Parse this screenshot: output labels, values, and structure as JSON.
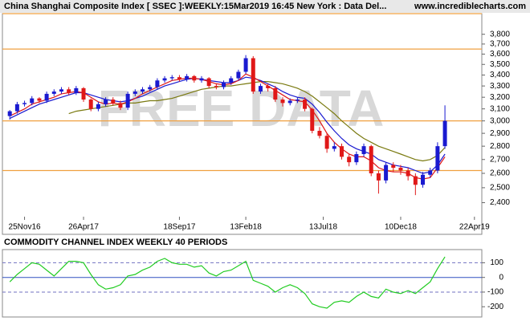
{
  "chart_data": [
    {
      "type": "candlestick",
      "title": "China Shanghai Composite Index [ SSEC ]:WEEKLY:15Mar2019 16:45 New York : Data Del...",
      "source": "www.incrediblecharts.com",
      "watermark": "FREE DATA",
      "log": true,
      "ylim": [
        2310,
        4020
      ],
      "yticks": [
        {
          "value": 2400,
          "label": "2,400"
        },
        {
          "value": 2500,
          "label": "2,500"
        },
        {
          "value": 2600,
          "label": "2,600"
        },
        {
          "value": 2700,
          "label": "2,700"
        },
        {
          "value": 2800,
          "label": "2,800"
        },
        {
          "value": 2900,
          "label": "2,900"
        },
        {
          "value": 3000,
          "label": "3,000"
        },
        {
          "value": 3100,
          "label": "3,100"
        },
        {
          "value": 3200,
          "label": "3,200"
        },
        {
          "value": 3300,
          "label": "3,300"
        },
        {
          "value": 3400,
          "label": "3,400"
        },
        {
          "value": 3500,
          "label": "3,500"
        },
        {
          "value": 3600,
          "label": "3,600"
        },
        {
          "value": 3700,
          "label": "3,700"
        },
        {
          "value": 3800,
          "label": "3,800"
        }
      ],
      "xlim": [
        -1,
        64
      ],
      "xticks": [
        {
          "value": 2,
          "label": "25Nov16"
        },
        {
          "value": 10,
          "label": "26Apr17"
        },
        {
          "value": 23,
          "label": "18Sep17"
        },
        {
          "value": 32,
          "label": "13Feb18"
        },
        {
          "value": 42.5,
          "label": "13Jul18"
        },
        {
          "value": 53,
          "label": "10Dec18"
        },
        {
          "value": 63,
          "label": "22Apr19"
        }
      ],
      "up_color": "#1a1ad0",
      "down_color": "#e01818",
      "hlines": [
        3650,
        3000,
        2620
      ],
      "hline_color": "#f0a040",
      "open": [
        3040,
        3080,
        3140,
        3150,
        3190,
        3170,
        3230,
        3250,
        3270,
        3240,
        3280,
        3180,
        3100,
        3140,
        3180,
        3150,
        3110,
        3230,
        3250,
        3270,
        3290,
        3350,
        3370,
        3380,
        3360,
        3390,
        3350,
        3370,
        3300,
        3290,
        3330,
        3370,
        3430,
        3560,
        3250,
        3300,
        3280,
        3180,
        3150,
        3170,
        3180,
        3100,
        2920,
        2880,
        2780,
        2800,
        2720,
        2680,
        2740,
        2800,
        2600,
        2550,
        2660,
        2640,
        2620,
        2580,
        2520,
        2590,
        2620,
        2800
      ],
      "high": [
        3090,
        3160,
        3170,
        3210,
        3200,
        3250,
        3270,
        3290,
        3290,
        3300,
        3290,
        3190,
        3160,
        3200,
        3200,
        3170,
        3250,
        3270,
        3290,
        3310,
        3370,
        3390,
        3400,
        3400,
        3410,
        3400,
        3390,
        3380,
        3320,
        3350,
        3390,
        3450,
        3590,
        3580,
        3320,
        3320,
        3300,
        3200,
        3190,
        3200,
        3200,
        3110,
        2950,
        2900,
        2830,
        2820,
        2740,
        2760,
        2820,
        2810,
        2620,
        2680,
        2680,
        2660,
        2640,
        2600,
        2610,
        2640,
        2830,
        3130
      ],
      "low": [
        3010,
        3060,
        3120,
        3130,
        3150,
        3150,
        3210,
        3230,
        3220,
        3220,
        3160,
        3080,
        3080,
        3120,
        3130,
        3090,
        3090,
        3210,
        3230,
        3250,
        3270,
        3330,
        3350,
        3340,
        3340,
        3330,
        3330,
        3280,
        3270,
        3270,
        3310,
        3350,
        3410,
        3230,
        3230,
        3250,
        3160,
        3120,
        3130,
        3150,
        3080,
        2900,
        2860,
        2750,
        2760,
        2700,
        2650,
        2660,
        2720,
        2580,
        2460,
        2530,
        2610,
        2590,
        2550,
        2450,
        2500,
        2570,
        2600,
        2780
      ],
      "close": [
        3080,
        3140,
        3150,
        3190,
        3170,
        3230,
        3250,
        3270,
        3240,
        3280,
        3180,
        3100,
        3140,
        3180,
        3150,
        3110,
        3230,
        3250,
        3270,
        3290,
        3350,
        3370,
        3380,
        3360,
        3390,
        3350,
        3370,
        3300,
        3290,
        3330,
        3370,
        3430,
        3560,
        3250,
        3300,
        3280,
        3180,
        3150,
        3170,
        3180,
        3100,
        2920,
        2880,
        2780,
        2800,
        2720,
        2680,
        2740,
        2800,
        2600,
        2550,
        2660,
        2640,
        2620,
        2580,
        2520,
        2590,
        2620,
        2800,
        3000
      ],
      "series": [
        {
          "color": "#7a7a10",
          "values": [
            null,
            null,
            null,
            null,
            null,
            null,
            null,
            null,
            3060,
            3080,
            3090,
            3100,
            3110,
            3120,
            3130,
            3140,
            3150,
            3150,
            3160,
            3170,
            3170,
            3180,
            3190,
            3210,
            3230,
            3250,
            3270,
            3280,
            3290,
            3300,
            3300,
            3310,
            3320,
            3330,
            3340,
            3340,
            3330,
            3320,
            3300,
            3280,
            3250,
            3210,
            3160,
            3110,
            3060,
            3000,
            2950,
            2900,
            2860,
            2830,
            2800,
            2780,
            2760,
            2740,
            2720,
            2700,
            2690,
            2700,
            2730,
            2790
          ]
        },
        {
          "color": "#1a1ad0",
          "values": [
            3020,
            3050,
            3080,
            3110,
            3140,
            3160,
            3180,
            3200,
            3220,
            3240,
            3240,
            3220,
            3200,
            3180,
            3170,
            3160,
            3170,
            3190,
            3210,
            3240,
            3270,
            3300,
            3320,
            3340,
            3360,
            3370,
            3360,
            3350,
            3340,
            3330,
            3330,
            3350,
            3380,
            3370,
            3350,
            3320,
            3290,
            3250,
            3220,
            3200,
            3190,
            3140,
            3070,
            2990,
            2920,
            2860,
            2810,
            2780,
            2760,
            2740,
            2700,
            2680,
            2660,
            2650,
            2640,
            2620,
            2600,
            2610,
            2660,
            2740
          ]
        },
        {
          "color": "#e01818",
          "values": [
            3040,
            3070,
            3100,
            3140,
            3160,
            3180,
            3200,
            3230,
            3240,
            3250,
            3240,
            3200,
            3160,
            3140,
            3150,
            3140,
            3160,
            3190,
            3230,
            3260,
            3290,
            3320,
            3350,
            3360,
            3370,
            3370,
            3360,
            3340,
            3320,
            3310,
            3320,
            3350,
            3410,
            3380,
            3340,
            3300,
            3260,
            3220,
            3180,
            3170,
            3160,
            3090,
            3000,
            2900,
            2830,
            2780,
            2740,
            2720,
            2720,
            2690,
            2640,
            2620,
            2610,
            2610,
            2600,
            2570,
            2560,
            2570,
            2640,
            2720
          ]
        }
      ]
    },
    {
      "type": "line",
      "title": "COMMODITY CHANNEL INDEX WEEKLY 40 PERIODS",
      "ylim": [
        -270,
        190
      ],
      "yticks": [
        100,
        0,
        -100,
        -200
      ],
      "xlim": [
        -1,
        64
      ],
      "hlines": [
        100,
        0,
        -100
      ],
      "color": "#22cc22",
      "values": [
        -30,
        20,
        60,
        100,
        90,
        50,
        10,
        60,
        110,
        110,
        100,
        20,
        -50,
        -80,
        -70,
        -50,
        10,
        20,
        50,
        70,
        110,
        130,
        100,
        90,
        90,
        70,
        80,
        30,
        10,
        40,
        50,
        80,
        110,
        -20,
        -40,
        -60,
        -100,
        -70,
        -50,
        -70,
        -110,
        -180,
        -200,
        -210,
        -170,
        -160,
        -170,
        -130,
        -100,
        -130,
        -140,
        -80,
        -100,
        -110,
        -90,
        -110,
        -70,
        -30,
        60,
        140
      ]
    }
  ]
}
